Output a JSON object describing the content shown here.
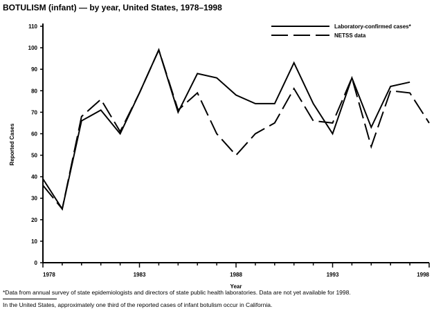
{
  "chart_data": {
    "type": "line",
    "title": "BOTULISM (infant) — by year, United States, 1978–1998",
    "xlabel": "Year",
    "ylabel": "Reported Cases",
    "xlim": [
      1978,
      1998
    ],
    "ylim": [
      0,
      110
    ],
    "yticks": [
      0,
      10,
      20,
      30,
      40,
      50,
      60,
      70,
      80,
      90,
      100,
      110
    ],
    "xtick_labels": [
      "1978",
      "1983",
      "1988",
      "1993",
      "1998"
    ],
    "legend_position": "top-right",
    "x": [
      1978,
      1979,
      1980,
      1981,
      1982,
      1983,
      1984,
      1985,
      1986,
      1987,
      1988,
      1989,
      1990,
      1991,
      1992,
      1993,
      1994,
      1995,
      1996,
      1997,
      1998
    ],
    "series": [
      {
        "name": "Laboratory-confirmed cases*",
        "style": "solid",
        "values": [
          39,
          25,
          66,
          71,
          60,
          79,
          99,
          70,
          88,
          86,
          78,
          74,
          74,
          93,
          74,
          60,
          86,
          63,
          82,
          84,
          null
        ]
      },
      {
        "name": "NETSS data",
        "style": "dashed",
        "values": [
          36,
          25,
          68,
          76,
          61,
          79,
          99,
          71,
          79,
          60,
          50,
          60,
          65,
          81,
          66,
          65,
          86,
          54,
          80,
          79,
          65
        ]
      }
    ]
  },
  "footnotes": {
    "note1": "*Data from annual survey of state epidemiologists and directors of state public health laboratories. Data are not yet available for 1998.",
    "note2": "In the United States, approximately one third of the reported cases of infant botulism occur in California."
  }
}
